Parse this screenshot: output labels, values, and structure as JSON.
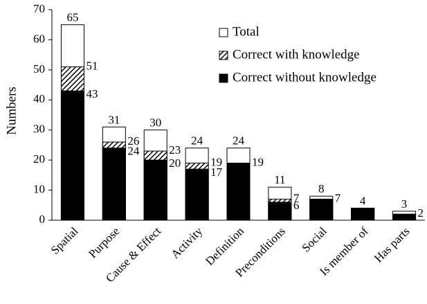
{
  "chart_data": {
    "type": "overlap-bar",
    "y_label": "Numbers",
    "categories": [
      "Spatial",
      "Purpose",
      "Cause & Effect",
      "Activity",
      "Definition",
      "Preconditions",
      "Social",
      "Is member of",
      "Has parts"
    ],
    "series": [
      {
        "name": "Total",
        "color": "#ffffff",
        "values": [
          65,
          31,
          30,
          24,
          24,
          11,
          8,
          4,
          3
        ],
        "value_labels": [
          "65",
          "31",
          "30",
          "24",
          "24",
          "11",
          "8",
          "4",
          "3"
        ]
      },
      {
        "name": "Correct with knowledge",
        "color": "hatch",
        "values": [
          51,
          26,
          23,
          19,
          19,
          7,
          7,
          4,
          2
        ],
        "value_labels": [
          "51",
          "26",
          "23",
          "19",
          null,
          "7",
          null,
          null,
          null
        ]
      },
      {
        "name": "Correct without knowledge",
        "color": "#000000",
        "values": [
          43,
          24,
          20,
          17,
          19,
          6,
          7,
          4,
          2
        ],
        "value_labels": [
          "43",
          "24",
          "20",
          "17",
          "19",
          "6",
          "7",
          null,
          "2"
        ]
      }
    ],
    "ylim": [
      0,
      70
    ],
    "yticks": [
      0,
      10,
      20,
      30,
      40,
      50,
      60,
      70
    ],
    "legend": "top-right"
  }
}
